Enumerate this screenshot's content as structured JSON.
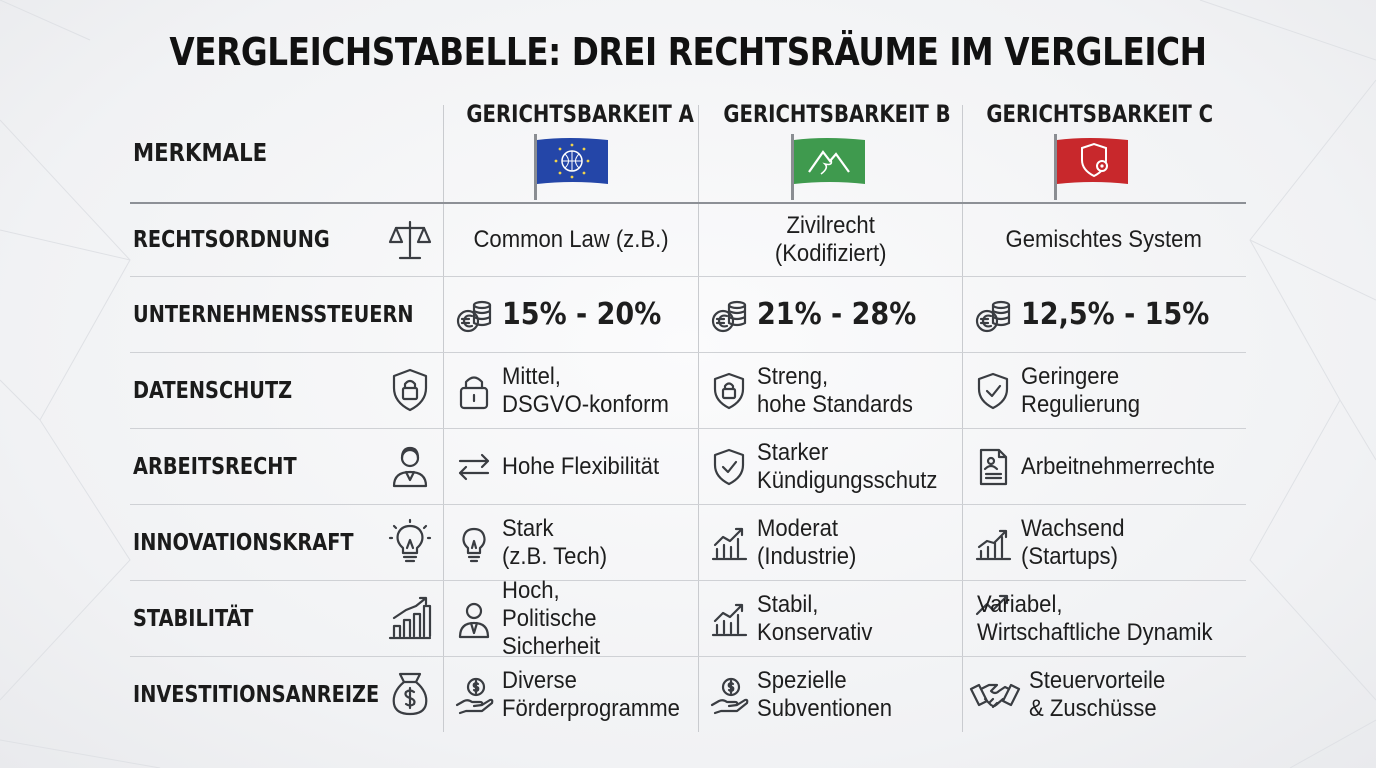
{
  "title": "VERGLEICHSTABELLE: DREI RECHTSRÄUME IM VERGLEICH",
  "header": {
    "features_label": "MERKMALE",
    "columns": [
      {
        "label": "GERICHTSBARKEIT A",
        "flag_icon": "eu-globe-flag-icon",
        "flag_color": "#2446a8"
      },
      {
        "label": "GERICHTSBARKEIT B",
        "flag_icon": "mountain-flag-icon",
        "flag_color": "#3f9a4e"
      },
      {
        "label": "GERICHTSBARKEIT C",
        "flag_icon": "shield-gear-flag-icon",
        "flag_color": "#c8282c"
      }
    ]
  },
  "rows": [
    {
      "label": "RECHTSORDNUNG",
      "icon": "scales-icon",
      "cells": [
        {
          "text": "Common Law (z.B.)",
          "icon": ""
        },
        {
          "text": "Zivilrecht\n(Kodifiziert)",
          "icon": ""
        },
        {
          "text": "Gemischtes System",
          "icon": ""
        }
      ]
    },
    {
      "label": "UNTERNEHMENSSTEUERN",
      "icon": "",
      "cells": [
        {
          "text": "15% - 20%",
          "icon": "euro-coins-icon"
        },
        {
          "text": "21% - 28%",
          "icon": "euro-coins-icon"
        },
        {
          "text": "12,5% - 15%",
          "icon": "euro-coins-icon"
        }
      ]
    },
    {
      "label": "DATENSCHUTZ",
      "icon": "shield-lock-icon",
      "cells": [
        {
          "text": "Mittel,\nDSGVO-konform",
          "icon": "padlock-icon"
        },
        {
          "text": "Streng,\nhohe Standards",
          "icon": "shield-lock-icon"
        },
        {
          "text": "Geringere\nRegulierung",
          "icon": "shield-check-icon"
        }
      ]
    },
    {
      "label": "ARBEITSRECHT",
      "icon": "worker-icon",
      "cells": [
        {
          "text": "Hohe Flexibilität",
          "icon": "swap-arrows-icon"
        },
        {
          "text": "Starker\nKündigungsschutz",
          "icon": "shield-check-icon"
        },
        {
          "text": "Arbeitnehmerrechte",
          "icon": "document-person-icon"
        }
      ]
    },
    {
      "label": "INNOVATIONSKRAFT",
      "icon": "lightbulb-icon",
      "cells": [
        {
          "text": "Stark\n(z.B. Tech)",
          "icon": "lightbulb-icon"
        },
        {
          "text": "Moderat\n(Industrie)",
          "icon": "growth-chart-icon"
        },
        {
          "text": "Wachsend\n(Startups)",
          "icon": "growth-chart-icon"
        }
      ]
    },
    {
      "label": "STABILITÄT",
      "icon": "bar-chart-icon",
      "cells": [
        {
          "text": "Hoch,\nPolitische Sicherheit",
          "icon": "businessman-icon"
        },
        {
          "text": "Stabil,\nKonservativ",
          "icon": "growth-chart-icon"
        },
        {
          "text": "Variabel,\nWirtschaftliche Dynamik",
          "icon": "trend-arrow-icon"
        }
      ]
    },
    {
      "label": "INVESTITIONSANREIZE",
      "icon": "money-bag-icon",
      "cells": [
        {
          "text": "Diverse\nFörderprogramme",
          "icon": "hand-coin-icon"
        },
        {
          "text": "Spezielle\nSubventionen",
          "icon": "hand-coin-icon"
        },
        {
          "text": "Steuervorteile\n& Zuschüsse",
          "icon": "handshake-icon"
        }
      ]
    }
  ]
}
